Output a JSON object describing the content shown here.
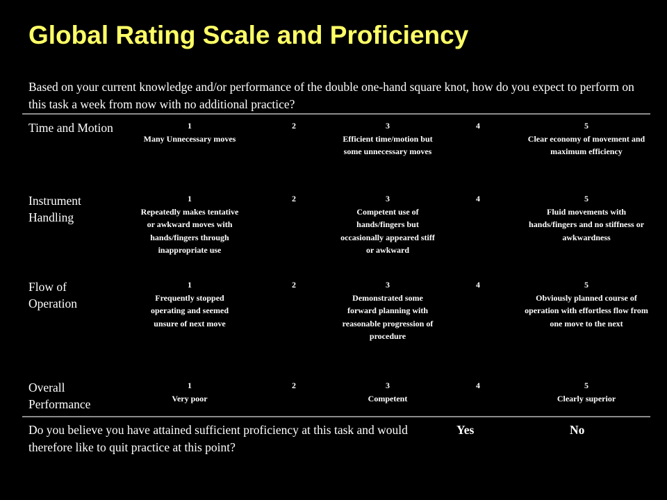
{
  "title": "Global Rating Scale and Proficiency",
  "question": "Based on your current knowledge and/or performance of the double one-hand square knot, how do you expect to perform on this task a week from now with no additional practice?",
  "rows": [
    {
      "label": "Time and Motion",
      "scale": [
        {
          "num": "1",
          "desc": "Many Unnecessary moves"
        },
        {
          "num": "2",
          "desc": ""
        },
        {
          "num": "3",
          "desc": "Efficient time/motion but some unnecessary moves"
        },
        {
          "num": "4",
          "desc": ""
        },
        {
          "num": "5",
          "desc": "Clear economy of movement and maximum efficiency"
        }
      ]
    },
    {
      "label": "Instrument Handling",
      "scale": [
        {
          "num": "1",
          "desc": "Repeatedly makes tentative or awkward moves with hands/fingers through inappropriate use"
        },
        {
          "num": "2",
          "desc": ""
        },
        {
          "num": "3",
          "desc": "Competent use of hands/fingers but occasionally appeared stiff or awkward"
        },
        {
          "num": "4",
          "desc": ""
        },
        {
          "num": "5",
          "desc": "Fluid movements with hands/fingers and no stiffness or awkwardness"
        }
      ]
    },
    {
      "label": "Flow of Operation",
      "scale": [
        {
          "num": "1",
          "desc": "Frequently stopped operating and seemed unsure of next move"
        },
        {
          "num": "2",
          "desc": ""
        },
        {
          "num": "3",
          "desc": "Demonstrated some forward planning with reasonable progression of procedure"
        },
        {
          "num": "4",
          "desc": ""
        },
        {
          "num": "5",
          "desc": "Obviously planned course of operation with effortless flow from one move to the next"
        }
      ]
    },
    {
      "label": "Overall Performance",
      "scale": [
        {
          "num": "1",
          "desc": "Very poor"
        },
        {
          "num": "2",
          "desc": ""
        },
        {
          "num": "3",
          "desc": "Competent"
        },
        {
          "num": "4",
          "desc": ""
        },
        {
          "num": "5",
          "desc": "Clearly superior"
        }
      ]
    }
  ],
  "proficiency_question": "Do you believe you have attained sufficient proficiency at this task and would therefore like to quit practice at this point?",
  "yes_label": "Yes",
  "no_label": "No",
  "colors": {
    "background": "#000000",
    "title": "#ffff66",
    "text": "#ffffff",
    "rule": "#8c8c8c"
  }
}
